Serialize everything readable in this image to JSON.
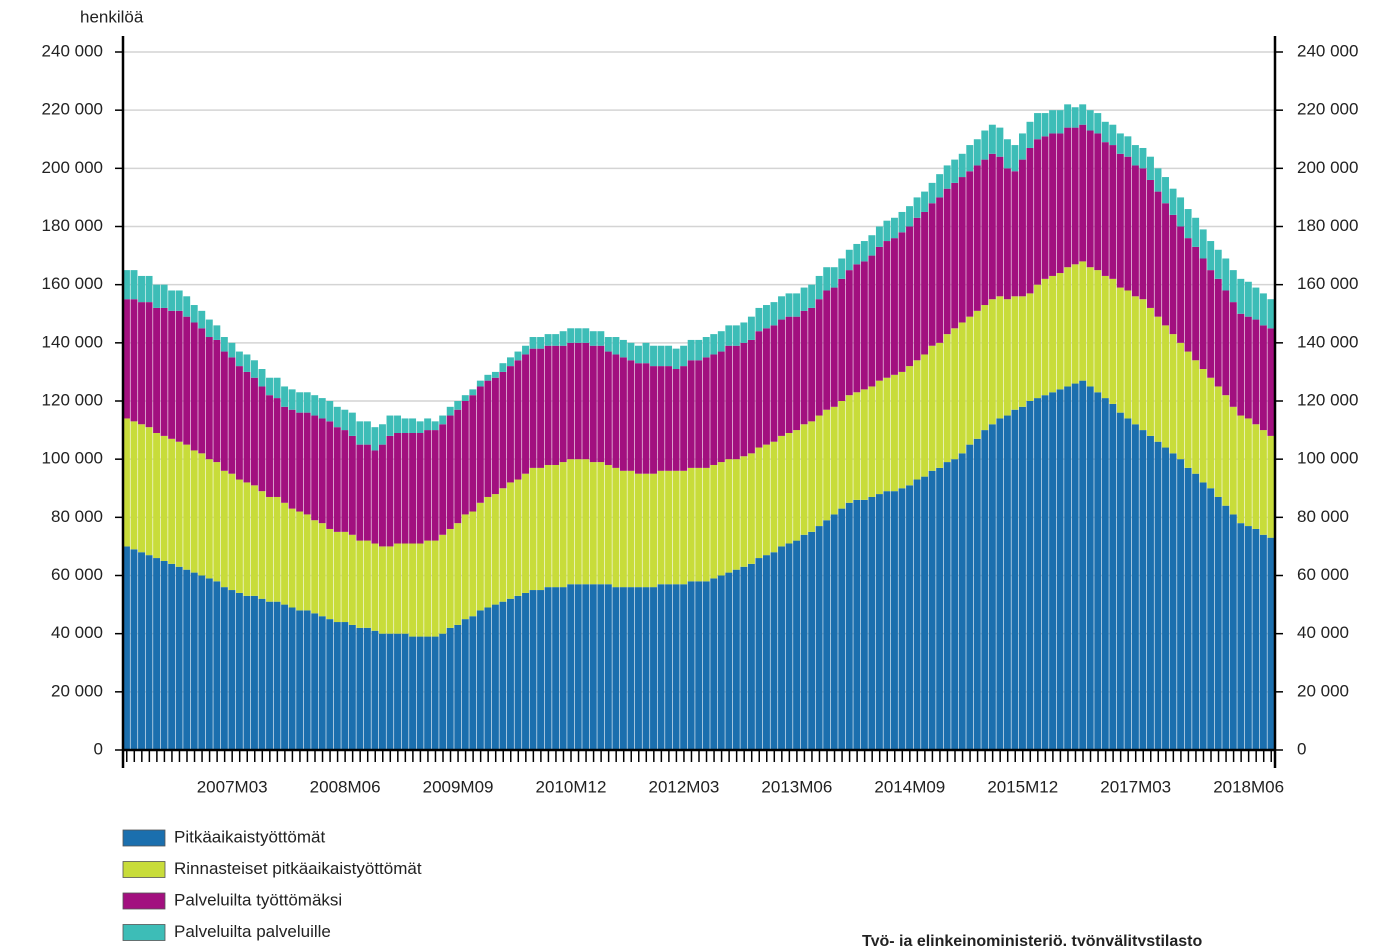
{
  "chart_data": {
    "type": "stacked_bar",
    "y_axis_label": "henkilöä",
    "source": "Työ- ja elinkeinoministeriö, työnvälitystilasto",
    "categories": [
      null,
      null,
      null,
      null,
      null,
      null,
      null,
      null,
      null,
      null,
      null,
      null,
      null,
      null,
      "2007M03",
      null,
      null,
      null,
      null,
      null,
      null,
      null,
      null,
      null,
      null,
      null,
      null,
      null,
      null,
      "2008M06",
      null,
      null,
      null,
      null,
      null,
      null,
      null,
      null,
      null,
      null,
      null,
      null,
      null,
      null,
      "2009M09",
      null,
      null,
      null,
      null,
      null,
      null,
      null,
      null,
      null,
      null,
      null,
      null,
      null,
      null,
      "2010M12",
      null,
      null,
      null,
      null,
      null,
      null,
      null,
      null,
      null,
      null,
      null,
      null,
      null,
      null,
      "2012M03",
      null,
      null,
      null,
      null,
      null,
      null,
      null,
      null,
      null,
      null,
      null,
      null,
      null,
      null,
      "2013M06",
      null,
      null,
      null,
      null,
      null,
      null,
      null,
      null,
      null,
      null,
      null,
      null,
      null,
      null,
      "2014M09",
      null,
      null,
      null,
      null,
      null,
      null,
      null,
      null,
      null,
      null,
      null,
      null,
      null,
      null,
      "2015M12",
      null,
      null,
      null,
      null,
      null,
      null,
      null,
      null,
      null,
      null,
      null,
      null,
      null,
      null,
      "2017M03",
      null,
      null,
      null,
      null,
      null,
      null,
      null,
      null,
      null,
      null,
      null,
      null,
      null,
      null,
      "2018M06",
      null,
      null,
      null
    ],
    "ylim": [
      0,
      240000
    ],
    "yticks": [
      0,
      {
        "value": 20000,
        "label": "20 000"
      },
      {
        "value": 40000,
        "label": "40 000"
      },
      {
        "value": 60000,
        "label": "60 000"
      },
      {
        "value": 80000,
        "label": "80 000"
      },
      {
        "value": 100000,
        "label": "100 000"
      },
      {
        "value": 120000,
        "label": "120 000"
      },
      {
        "value": 140000,
        "label": "140 000"
      },
      {
        "value": 160000,
        "label": "160 000"
      },
      {
        "value": 180000,
        "label": "180 000"
      },
      {
        "value": 200000,
        "label": "200 000"
      },
      {
        "value": 220000,
        "label": "220 000"
      },
      {
        "value": 240000,
        "label": "240 000"
      }
    ],
    "grid": true,
    "legend": "bottom-left",
    "series": [
      {
        "name": "Pitkäaikaistyöttömät",
        "color": "#1b6fae",
        "values": [
          70000,
          69000,
          68000,
          67000,
          66000,
          65000,
          64000,
          63000,
          62000,
          61000,
          60000,
          59000,
          58000,
          56000,
          55000,
          54000,
          53000,
          53000,
          52000,
          51000,
          51000,
          50000,
          49000,
          48000,
          48000,
          47000,
          46000,
          45000,
          44000,
          44000,
          43000,
          42000,
          42000,
          41000,
          40000,
          40000,
          40000,
          40000,
          39000,
          39000,
          39000,
          39000,
          40000,
          42000,
          43000,
          45000,
          46000,
          48000,
          49000,
          50000,
          51000,
          52000,
          53000,
          54000,
          55000,
          55000,
          56000,
          56000,
          56000,
          57000,
          57000,
          57000,
          57000,
          57000,
          57000,
          56000,
          56000,
          56000,
          56000,
          56000,
          56000,
          57000,
          57000,
          57000,
          57000,
          58000,
          58000,
          58000,
          59000,
          60000,
          61000,
          62000,
          63000,
          64000,
          66000,
          67000,
          68000,
          70000,
          71000,
          72000,
          74000,
          75000,
          77000,
          79000,
          81000,
          83000,
          85000,
          86000,
          86000,
          87000,
          88000,
          89000,
          89000,
          90000,
          91000,
          93000,
          94000,
          96000,
          97000,
          99000,
          100000,
          102000,
          105000,
          107000,
          110000,
          112000,
          114000,
          115000,
          117000,
          118000,
          120000,
          121000,
          122000,
          123000,
          124000,
          125000,
          126000,
          127000,
          125000,
          123000,
          121000,
          119000,
          116000,
          114000,
          112000,
          110000,
          108000,
          106000,
          104000,
          102000,
          100000,
          97000,
          95000,
          92000,
          90000,
          87000,
          84000,
          81000,
          78000,
          77000,
          76000,
          74000,
          73000
        ]
      },
      {
        "name": "Rinnasteiset pitkäaikaistyöttömät",
        "color": "#c8dc3a",
        "values": [
          44000,
          44000,
          44000,
          44000,
          43000,
          43000,
          43000,
          43000,
          43000,
          42000,
          42000,
          41000,
          41000,
          40000,
          40000,
          39000,
          39000,
          38000,
          37000,
          36000,
          36000,
          35000,
          34000,
          34000,
          33000,
          32000,
          32000,
          31000,
          31000,
          31000,
          31000,
          30000,
          30000,
          30000,
          30000,
          30000,
          31000,
          31000,
          32000,
          32000,
          33000,
          33000,
          34000,
          34000,
          35000,
          36000,
          36000,
          37000,
          38000,
          38000,
          39000,
          40000,
          40000,
          41000,
          42000,
          42000,
          42000,
          42000,
          43000,
          43000,
          43000,
          43000,
          42000,
          42000,
          41000,
          41000,
          40000,
          40000,
          39000,
          39000,
          39000,
          39000,
          39000,
          39000,
          39000,
          39000,
          39000,
          39000,
          39000,
          39000,
          39000,
          38000,
          38000,
          38000,
          38000,
          38000,
          38000,
          38000,
          38000,
          38000,
          38000,
          38000,
          38000,
          38000,
          37000,
          37000,
          37000,
          37000,
          38000,
          38000,
          39000,
          39000,
          40000,
          40000,
          41000,
          41000,
          42000,
          43000,
          43000,
          44000,
          45000,
          45000,
          44000,
          44000,
          43000,
          43000,
          42000,
          40000,
          39000,
          38000,
          37000,
          39000,
          40000,
          40000,
          40000,
          41000,
          41000,
          41000,
          41000,
          42000,
          42000,
          43000,
          43000,
          44000,
          44000,
          45000,
          44000,
          43000,
          42000,
          41000,
          40000,
          40000,
          39000,
          39000,
          38000,
          38000,
          38000,
          37000,
          37000,
          37000,
          36000,
          36000,
          35000
        ]
      },
      {
        "name": "Palveluilta työttömäksi",
        "color": "#a2107f",
        "values": [
          41000,
          42000,
          42000,
          43000,
          43000,
          44000,
          44000,
          45000,
          44000,
          44000,
          43000,
          42000,
          42000,
          41000,
          40000,
          39000,
          38000,
          37000,
          36000,
          35000,
          34000,
          33000,
          34000,
          34000,
          35000,
          36000,
          36000,
          37000,
          36000,
          35000,
          34000,
          33000,
          33000,
          32000,
          35000,
          38000,
          38000,
          38000,
          38000,
          38000,
          38000,
          38000,
          38000,
          39000,
          39000,
          39000,
          40000,
          40000,
          40000,
          40000,
          40000,
          40000,
          41000,
          41000,
          41000,
          41000,
          41000,
          41000,
          40000,
          40000,
          40000,
          40000,
          40000,
          40000,
          39000,
          39000,
          39000,
          38000,
          38000,
          38000,
          37000,
          36000,
          36000,
          35000,
          36000,
          37000,
          37000,
          38000,
          38000,
          38000,
          39000,
          39000,
          39000,
          39000,
          40000,
          40000,
          40000,
          40000,
          40000,
          39000,
          39000,
          39000,
          40000,
          41000,
          41000,
          42000,
          43000,
          44000,
          44000,
          45000,
          46000,
          47000,
          47000,
          48000,
          48000,
          49000,
          49000,
          49000,
          50000,
          50000,
          50000,
          50000,
          50000,
          50000,
          50000,
          50000,
          48000,
          45000,
          43000,
          47000,
          50000,
          50000,
          49000,
          49000,
          48000,
          48000,
          47000,
          47000,
          47000,
          47000,
          46000,
          46000,
          46000,
          46000,
          45000,
          45000,
          44000,
          43000,
          42000,
          41000,
          40000,
          39000,
          39000,
          38000,
          37000,
          37000,
          36000,
          36000,
          35000,
          35000,
          36000,
          36000,
          37000
        ]
      },
      {
        "name": "Palveluilta palveluille",
        "color": "#3dbdb7",
        "values": [
          10000,
          10000,
          9000,
          9000,
          8000,
          8000,
          7000,
          7000,
          7000,
          6000,
          6000,
          6000,
          5000,
          5000,
          5000,
          5000,
          6000,
          6000,
          6000,
          6000,
          7000,
          7000,
          7000,
          7000,
          7000,
          7000,
          7000,
          7000,
          7000,
          7000,
          8000,
          8000,
          8000,
          8000,
          7000,
          7000,
          6000,
          5000,
          5000,
          4000,
          4000,
          3000,
          3000,
          3000,
          3000,
          2000,
          2000,
          2000,
          2000,
          2000,
          3000,
          3000,
          3000,
          3000,
          4000,
          4000,
          4000,
          4000,
          5000,
          5000,
          5000,
          5000,
          5000,
          5000,
          5000,
          6000,
          6000,
          6000,
          6000,
          7000,
          7000,
          7000,
          7000,
          7000,
          7000,
          7000,
          7000,
          7000,
          7000,
          7000,
          7000,
          7000,
          7000,
          8000,
          8000,
          8000,
          8000,
          8000,
          8000,
          8000,
          8000,
          8000,
          8000,
          8000,
          7000,
          7000,
          7000,
          7000,
          7000,
          7000,
          7000,
          7000,
          7000,
          7000,
          7000,
          7000,
          7000,
          7000,
          8000,
          8000,
          8000,
          8000,
          9000,
          9000,
          10000,
          10000,
          10000,
          10000,
          9000,
          9000,
          9000,
          9000,
          8000,
          8000,
          8000,
          8000,
          7000,
          7000,
          7000,
          7000,
          7000,
          7000,
          7000,
          7000,
          7000,
          7000,
          8000,
          8000,
          9000,
          9000,
          10000,
          10000,
          10000,
          10000,
          10000,
          10000,
          11000,
          11000,
          12000,
          12000,
          11000,
          11000,
          10000
        ]
      }
    ]
  }
}
